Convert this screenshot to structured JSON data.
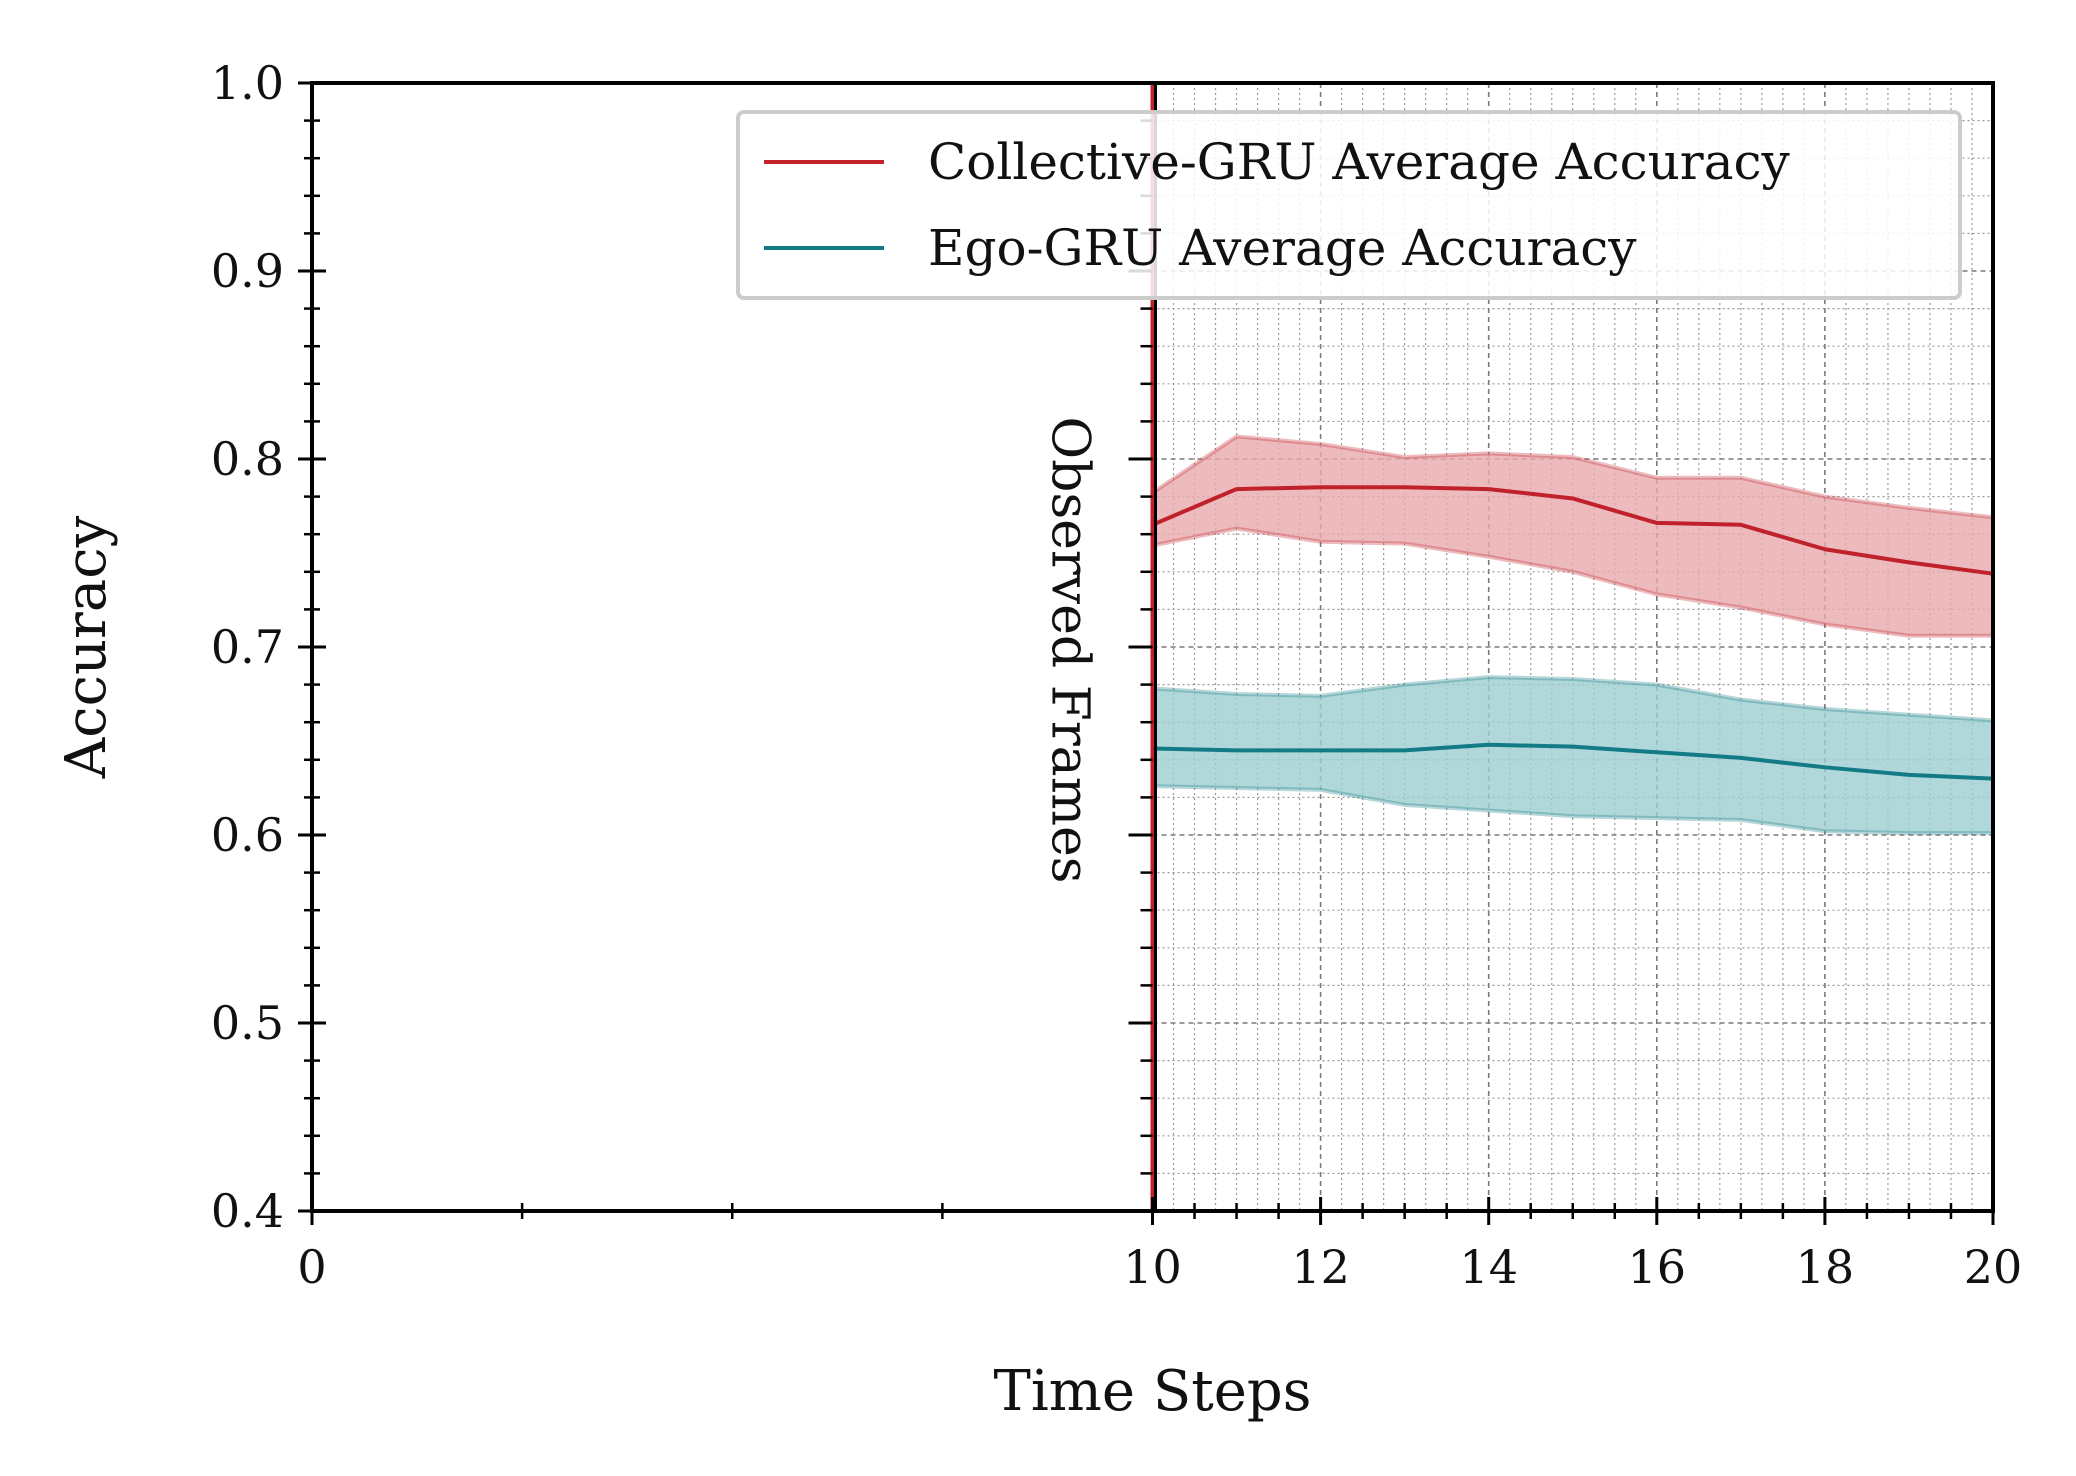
{
  "chart_data": {
    "type": "line",
    "title": "",
    "xlabel": "Time Steps",
    "ylabel": "Accuracy",
    "xlim": [
      0,
      20
    ],
    "ylim": [
      0.4,
      1.0
    ],
    "xticks": [
      0,
      10,
      12,
      14,
      16,
      18,
      20
    ],
    "xtick_labels": [
      "0",
      "10",
      "12",
      "14",
      "16",
      "18",
      "20"
    ],
    "yticks": [
      0.4,
      0.5,
      0.6,
      0.7,
      0.8,
      0.9,
      1.0
    ],
    "ytick_labels": [
      "0.4",
      "0.5",
      "0.6",
      "0.7",
      "0.8",
      "0.9",
      "1.0"
    ],
    "grid": true,
    "legend_position": "top-right",
    "annotation": {
      "text": "Observed Frames",
      "x": 10
    },
    "x": [
      10,
      11,
      12,
      13,
      14,
      15,
      16,
      17,
      18,
      19,
      20
    ],
    "series": [
      {
        "name": "Collective-GRU Average Accuracy",
        "color": "#c0212a",
        "band_color": "#e8a9ad",
        "values": [
          0.765,
          0.784,
          0.785,
          0.785,
          0.784,
          0.779,
          0.766,
          0.765,
          0.752,
          0.745,
          0.739
        ],
        "upper": [
          0.782,
          0.812,
          0.808,
          0.801,
          0.803,
          0.801,
          0.79,
          0.79,
          0.78,
          0.774,
          0.769
        ],
        "lower": [
          0.754,
          0.763,
          0.756,
          0.755,
          0.748,
          0.74,
          0.728,
          0.721,
          0.712,
          0.706,
          0.706
        ]
      },
      {
        "name": "Ego-GRU Average Accuracy",
        "color": "#137b85",
        "band_color": "#9ccdd1",
        "values": [
          0.646,
          0.645,
          0.645,
          0.645,
          0.648,
          0.647,
          0.644,
          0.641,
          0.636,
          0.632,
          0.63
        ],
        "upper": [
          0.678,
          0.675,
          0.674,
          0.68,
          0.684,
          0.683,
          0.68,
          0.672,
          0.667,
          0.664,
          0.661
        ],
        "lower": [
          0.626,
          0.625,
          0.624,
          0.616,
          0.613,
          0.61,
          0.609,
          0.608,
          0.602,
          0.601,
          0.601
        ]
      }
    ]
  }
}
